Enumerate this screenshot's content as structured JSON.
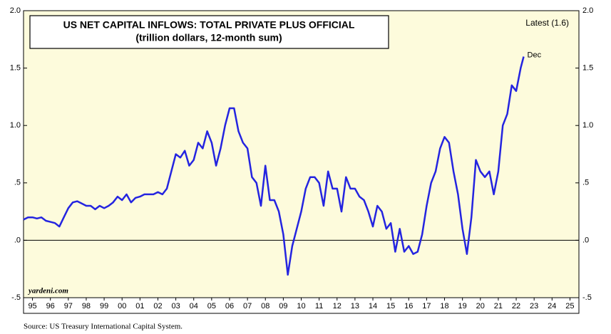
{
  "chart_data": {
    "type": "line",
    "title": "US NET CAPITAL INFLOWS: TOTAL PRIVATE PLUS OFFICIAL",
    "subtitle": "(trillion dollars, 12-month sum)",
    "annotations": {
      "latest": "Latest (1.6)",
      "last_point": "Dec",
      "watermark": "yardeni.com",
      "source": "Source: US Treasury International Capital System."
    },
    "xlim": [
      1995,
      2026
    ],
    "xticks": [
      {
        "value": 1995.5,
        "label": "95"
      },
      {
        "value": 1996.5,
        "label": "96"
      },
      {
        "value": 1997.5,
        "label": "97"
      },
      {
        "value": 1998.5,
        "label": "98"
      },
      {
        "value": 1999.5,
        "label": "99"
      },
      {
        "value": 2000.5,
        "label": "00"
      },
      {
        "value": 2001.5,
        "label": "01"
      },
      {
        "value": 2002.5,
        "label": "02"
      },
      {
        "value": 2003.5,
        "label": "03"
      },
      {
        "value": 2004.5,
        "label": "04"
      },
      {
        "value": 2005.5,
        "label": "05"
      },
      {
        "value": 2006.5,
        "label": "06"
      },
      {
        "value": 2007.5,
        "label": "07"
      },
      {
        "value": 2008.5,
        "label": "08"
      },
      {
        "value": 2009.5,
        "label": "09"
      },
      {
        "value": 2010.5,
        "label": "10"
      },
      {
        "value": 2011.5,
        "label": "11"
      },
      {
        "value": 2012.5,
        "label": "12"
      },
      {
        "value": 2013.5,
        "label": "13"
      },
      {
        "value": 2014.5,
        "label": "14"
      },
      {
        "value": 2015.5,
        "label": "15"
      },
      {
        "value": 2016.5,
        "label": "16"
      },
      {
        "value": 2017.5,
        "label": "17"
      },
      {
        "value": 2018.5,
        "label": "18"
      },
      {
        "value": 2019.5,
        "label": "19"
      },
      {
        "value": 2020.5,
        "label": "20"
      },
      {
        "value": 2021.5,
        "label": "21"
      },
      {
        "value": 2022.5,
        "label": "22"
      },
      {
        "value": 2023.5,
        "label": "23"
      },
      {
        "value": 2024.5,
        "label": "24"
      },
      {
        "value": 2025.5,
        "label": "25"
      }
    ],
    "ylim": [
      -0.5,
      2.0
    ],
    "yticks": [
      {
        "value": 2.0,
        "label": "2.0"
      },
      {
        "value": 1.5,
        "label": "1.5"
      },
      {
        "value": 1.0,
        "label": "1.0"
      },
      {
        "value": 0.5,
        "label": ".5"
      },
      {
        "value": 0,
        "label": ".0"
      },
      {
        "value": -0.5,
        "label": "-.5"
      }
    ],
    "y2lim": [
      -0.5,
      2.0
    ],
    "y2ticks": [
      {
        "value": 2.0,
        "label": "2.0"
      },
      {
        "value": 1.5,
        "label": "1.5"
      },
      {
        "value": 1.0,
        "label": "1.0"
      },
      {
        "value": 0.5,
        "label": ".5"
      },
      {
        "value": 0,
        "label": ".0"
      },
      {
        "value": -0.5,
        "label": "-.5"
      }
    ],
    "zero_line": true,
    "x": [
      1995,
      1995.25,
      1995.5,
      1995.75,
      1996,
      1996.25,
      1996.5,
      1996.75,
      1997,
      1997.25,
      1997.5,
      1997.75,
      1998,
      1998.25,
      1998.5,
      1998.75,
      1999,
      1999.25,
      1999.5,
      1999.75,
      2000,
      2000.25,
      2000.5,
      2000.75,
      2001,
      2001.25,
      2001.5,
      2001.75,
      2002,
      2002.25,
      2002.5,
      2002.75,
      2003,
      2003.25,
      2003.5,
      2003.75,
      2004,
      2004.25,
      2004.5,
      2004.75,
      2005,
      2005.25,
      2005.5,
      2005.75,
      2006,
      2006.25,
      2006.5,
      2006.75,
      2007,
      2007.25,
      2007.5,
      2007.75,
      2008,
      2008.25,
      2008.5,
      2008.75,
      2009,
      2009.25,
      2009.5,
      2009.75,
      2010,
      2010.25,
      2010.5,
      2010.75,
      2011,
      2011.25,
      2011.5,
      2011.75,
      2012,
      2012.25,
      2012.5,
      2012.75,
      2013,
      2013.25,
      2013.5,
      2013.75,
      2014,
      2014.25,
      2014.5,
      2014.75,
      2015,
      2015.25,
      2015.5,
      2015.75,
      2016,
      2016.25,
      2016.5,
      2016.75,
      2017,
      2017.25,
      2017.5,
      2017.75,
      2018,
      2018.25,
      2018.5,
      2018.75,
      2019,
      2019.25,
      2019.5,
      2019.75,
      2020,
      2020.25,
      2020.5,
      2020.75,
      2021,
      2021.25,
      2021.5,
      2021.75,
      2022,
      2022.25,
      2022.5,
      2022.75,
      2022.917
    ],
    "series": [
      {
        "name": "US net capital inflows",
        "color": "#2424e0",
        "values": [
          0.18,
          0.2,
          0.2,
          0.19,
          0.2,
          0.17,
          0.16,
          0.15,
          0.12,
          0.2,
          0.28,
          0.33,
          0.34,
          0.32,
          0.3,
          0.3,
          0.27,
          0.3,
          0.28,
          0.3,
          0.33,
          0.38,
          0.35,
          0.4,
          0.33,
          0.37,
          0.38,
          0.4,
          0.4,
          0.4,
          0.42,
          0.4,
          0.45,
          0.6,
          0.75,
          0.72,
          0.78,
          0.65,
          0.7,
          0.85,
          0.8,
          0.95,
          0.85,
          0.65,
          0.8,
          1.0,
          1.15,
          1.15,
          0.95,
          0.85,
          0.8,
          0.55,
          0.5,
          0.3,
          0.65,
          0.35,
          0.35,
          0.25,
          0.05,
          -0.3,
          -0.05,
          0.1,
          0.25,
          0.45,
          0.55,
          0.55,
          0.5,
          0.3,
          0.6,
          0.45,
          0.45,
          0.25,
          0.55,
          0.45,
          0.45,
          0.38,
          0.35,
          0.25,
          0.12,
          0.3,
          0.25,
          0.1,
          0.15,
          -0.1,
          0.1,
          -0.1,
          -0.05,
          -0.12,
          -0.1,
          0.05,
          0.3,
          0.5,
          0.6,
          0.8,
          0.9,
          0.85,
          0.6,
          0.4,
          0.1,
          -0.12,
          0.2,
          0.7,
          0.6,
          0.55,
          0.6,
          0.4,
          0.6,
          1.0,
          1.1,
          1.35,
          1.3,
          1.5,
          1.6
        ]
      }
    ]
  }
}
